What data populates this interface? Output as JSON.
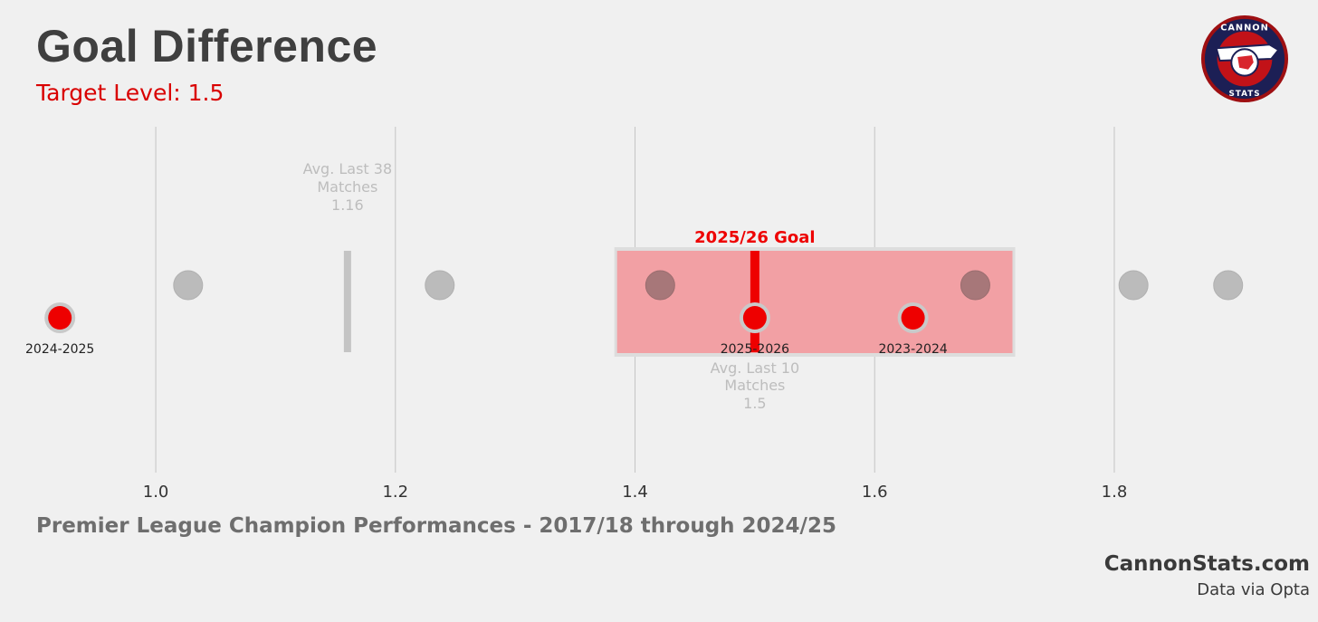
{
  "header": {
    "title": "Goal Difference",
    "subtitle": "Target Level: 1.5"
  },
  "logo": {
    "top_text": "CANNON",
    "bottom_text": "STATS",
    "icon": "cannon-badge-icon"
  },
  "footer": {
    "caption": "Premier League Champion Performances - 2017/18 through 2024/25",
    "site": "CannonStats.com",
    "source": "Data via Opta"
  },
  "colors": {
    "accent": "#ee0000",
    "grey_dot": "#bbbbbb",
    "band": "#f2a0a4",
    "text_grey": "#bdbdbd"
  },
  "chart_data": {
    "type": "scatter",
    "title": "Goal Difference",
    "subtitle": "Target Level: 1.5",
    "xlim": [
      0.87,
      1.97
    ],
    "xticks": [
      1.0,
      1.2,
      1.4,
      1.6,
      1.8
    ],
    "xtick_labels": [
      "1.0",
      "1.2",
      "1.4",
      "1.6",
      "1.8"
    ],
    "grid": "vertical",
    "champion_seasons": [
      1.027,
      1.237,
      1.421,
      1.684,
      1.816,
      1.895
    ],
    "highlighted_seasons": [
      {
        "label": "2024-2025",
        "value": 0.92
      },
      {
        "label": "2023-2024",
        "value": 1.632
      }
    ],
    "current": {
      "label": "2025-2026",
      "value": 1.5
    },
    "goal": {
      "label": "2025/26 Goal",
      "value": 1.5
    },
    "goal_band": [
      1.385,
      1.715
    ],
    "avg_last_38": {
      "label_line1": "Avg. Last 38",
      "label_line2": "Matches",
      "value": 1.16,
      "value_text": "1.16"
    },
    "avg_last_10": {
      "label_line1": "Avg. Last 10",
      "label_line2": "Matches",
      "value": 1.5,
      "value_text": "1.5"
    }
  }
}
